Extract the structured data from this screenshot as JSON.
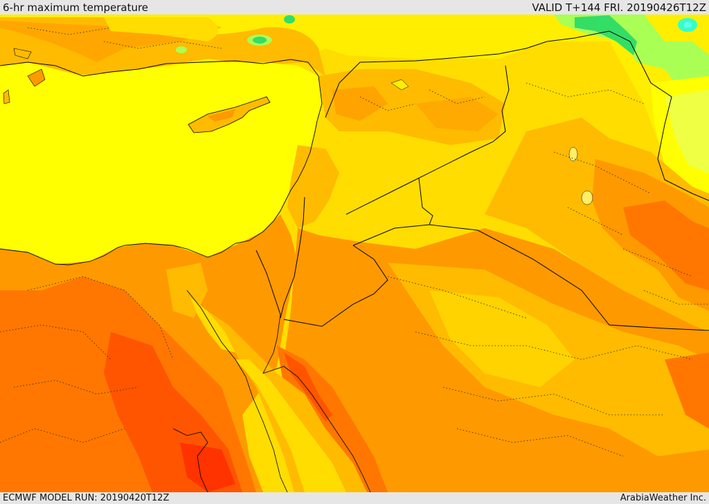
{
  "header": {
    "title": "6-hr maximum temperature",
    "valid": "VALID T+144 FRI. 20190426T12Z"
  },
  "footer": {
    "model_run": "ECMWF MODEL RUN: 20190420T12Z",
    "credit": "ArabiaWeather Inc."
  },
  "colors": {
    "sea": "#ffff00",
    "warm_yellow": "#ffdd00",
    "light_orange": "#ffbb00",
    "orange": "#ff9900",
    "dark_orange": "#ff7700",
    "red_orange": "#ff5500",
    "pale_green": "#aaff55",
    "green": "#33dd66",
    "cyan": "#33ffcc",
    "border": "#000000"
  }
}
